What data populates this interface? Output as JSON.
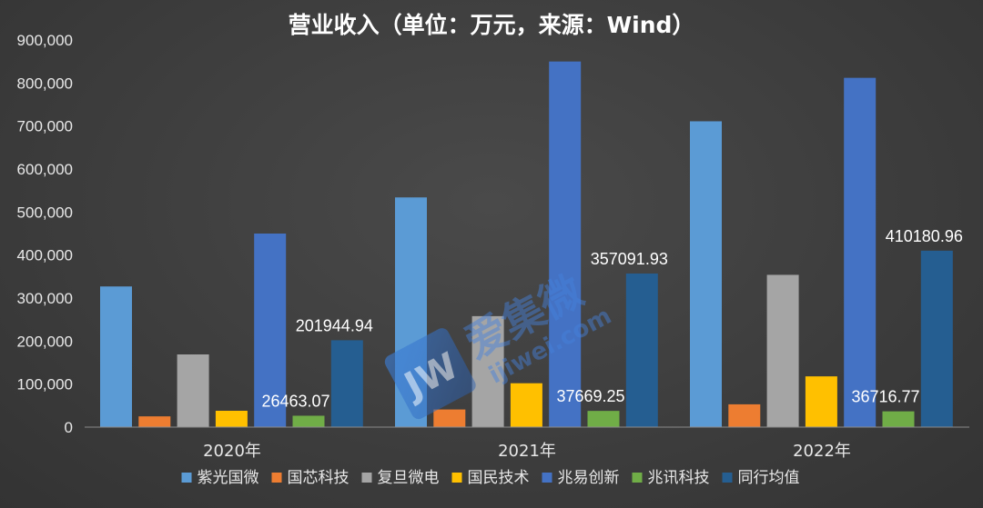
{
  "chart_data": {
    "type": "bar",
    "title": "营业收入（单位：万元，来源：Wind）",
    "categories": [
      "2020年",
      "2021年",
      "2022年"
    ],
    "ylim": [
      0,
      900000
    ],
    "yticks": [
      "0",
      "100,000",
      "200,000",
      "300,000",
      "400,000",
      "500,000",
      "600,000",
      "700,000",
      "800,000",
      "900,000"
    ],
    "grid": false,
    "legend_position": "bottom",
    "series": [
      {
        "name": "紫光国微",
        "color": "#5b9bd5",
        "values": [
          327000,
          534000,
          711000
        ]
      },
      {
        "name": "国芯科技",
        "color": "#ed7d31",
        "values": [
          25000,
          41000,
          53000
        ]
      },
      {
        "name": "复旦微电",
        "color": "#a5a5a5",
        "values": [
          169000,
          258000,
          354000
        ]
      },
      {
        "name": "国民技术",
        "color": "#ffc000",
        "values": [
          38000,
          102000,
          118000
        ]
      },
      {
        "name": "兆易创新",
        "color": "#4472c4",
        "values": [
          450000,
          850000,
          812000
        ]
      },
      {
        "name": "兆讯科技",
        "color": "#70ad47",
        "values": [
          26463.07,
          37669.25,
          36716.77
        ]
      },
      {
        "name": "同行均值",
        "color": "#255e91",
        "values": [
          201944.94,
          357091.93,
          410180.96
        ]
      }
    ],
    "data_labels": [
      {
        "series": "同行均值",
        "category": "2020年",
        "text": "201944.94"
      },
      {
        "series": "同行均值",
        "category": "2021年",
        "text": "357091.93"
      },
      {
        "series": "同行均值",
        "category": "2022年",
        "text": "410180.96"
      },
      {
        "series": "兆讯科技",
        "category": "2020年",
        "text": "26463.07"
      },
      {
        "series": "兆讯科技",
        "category": "2021年",
        "text": "37669.25"
      },
      {
        "series": "兆讯科技",
        "category": "2022年",
        "text": "36716.77"
      }
    ]
  },
  "watermark": {
    "logo_text": "JW",
    "cn_text": "爱集微",
    "url_text": "ijiwei.com"
  }
}
